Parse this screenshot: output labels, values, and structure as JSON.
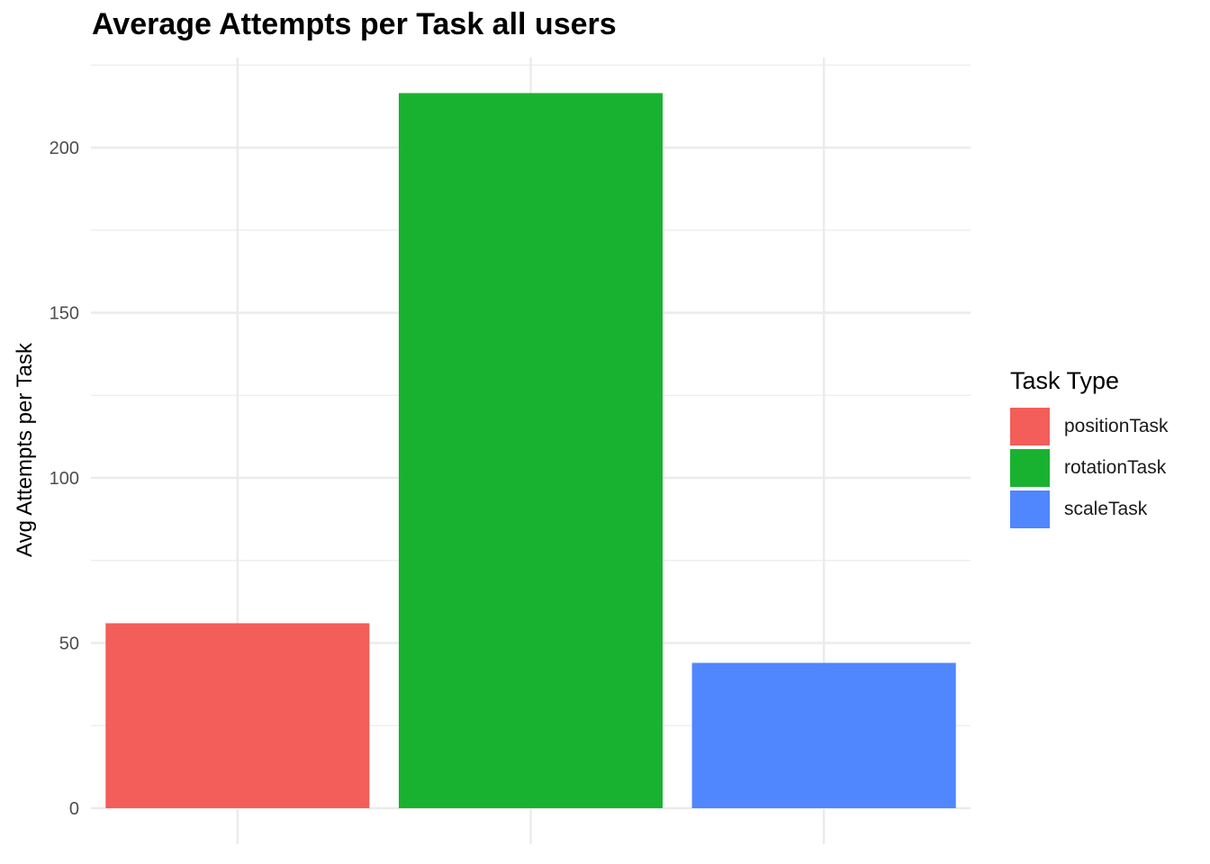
{
  "chart_data": {
    "type": "bar",
    "title": "Average Attempts per Task all users",
    "xlabel": "",
    "ylabel": "Avg Attempts per Task",
    "categories": [
      "positionTask",
      "rotationTask",
      "scaleTask"
    ],
    "values": [
      56,
      216.5,
      44
    ],
    "colors": [
      "#F35E5A",
      "#19B230",
      "#5086FE"
    ],
    "ylim": [
      0,
      225
    ],
    "yticks": [
      0,
      50,
      100,
      150,
      200
    ],
    "grid": true,
    "legend": {
      "title": "Task Type",
      "placement": "right",
      "items": [
        "positionTask",
        "rotationTask",
        "scaleTask"
      ]
    }
  }
}
